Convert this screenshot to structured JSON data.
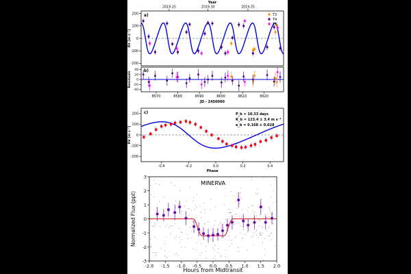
{
  "colors": {
    "page_background": "#000000",
    "figure_background": "#ffffff",
    "rv_model": "#0000dd",
    "zero_line": "#777777",
    "instrument_T3": "#ff8c00",
    "instrument_T4": "#4b0082",
    "instrument_T5": "#ff00ff",
    "phase_points": "#ff0000",
    "transit_model": "#dd3333",
    "binned_points": "#6a0dad",
    "raw_points": "#888888"
  },
  "chart_data": [
    {
      "type": "scatter",
      "panel_label": "a)",
      "top_axis_title": "Year",
      "top_ticks": [
        {
          "jd": 8576.0,
          "label": "2019.25"
        },
        {
          "jd": 8594.0,
          "label": "2019.30"
        },
        {
          "jd": 8612.5,
          "label": "2019.35"
        }
      ],
      "xlim": [
        8563,
        8629
      ],
      "ylabel": "RV [m s⁻¹]",
      "ylim": [
        -220,
        220
      ],
      "yticks": [
        -200,
        -100,
        0,
        100,
        200
      ],
      "zero_line": true,
      "legend_position": "top-right",
      "model": {
        "period": 10.33,
        "amplitude": 123.4,
        "eccentricity": 0.168,
        "t_peak": 8565.0
      },
      "series": [
        {
          "name": "T3",
          "color": "#ff8c00",
          "x": [
            8604.8,
            8614.9,
            8615.6,
            8625.2,
            8625.9
          ],
          "y": [
            -40,
            -95,
            -85,
            50,
            105
          ],
          "err": [
            20,
            22,
            20,
            25,
            22
          ]
        },
        {
          "name": "T4",
          "color": "#4b0082",
          "x": [
            8564.0,
            8566.5,
            8569.5,
            8575.0,
            8577.5,
            8580.0,
            8584.0,
            8585.5,
            8589.5,
            8592.5,
            8594.0,
            8596.0,
            8600.2,
            8602.0,
            8605.3,
            8608.3,
            8610.5,
            8614.8,
            8621.4,
            8624.6,
            8627.4
          ],
          "y": [
            140,
            15,
            -110,
            120,
            -45,
            -110,
            50,
            112,
            -100,
            38,
            125,
            120,
            -70,
            -120,
            5,
            110,
            100,
            -120,
            -70,
            90,
            -80
          ],
          "err": [
            18,
            22,
            20,
            20,
            18,
            22,
            20,
            18,
            22,
            20,
            18,
            20,
            22,
            20,
            18,
            22,
            20,
            20,
            22,
            20,
            22
          ]
        },
        {
          "name": "T5",
          "color": "#ff00ff",
          "x": [
            8567.0,
            8579.5,
            8591.0,
            8603.2,
            8611.0,
            8626.2
          ],
          "y": [
            -40,
            -80,
            -120,
            -110,
            140,
            85
          ],
          "err": [
            22,
            20,
            20,
            22,
            18,
            20
          ]
        }
      ]
    },
    {
      "type": "scatter",
      "panel_label": "b)",
      "xlabel": "JD - 2450000",
      "ylabel": "Residuals",
      "xlim": [
        8563,
        8629
      ],
      "xticks": [
        8570,
        8580,
        8590,
        8600,
        8610,
        8620
      ],
      "ylim": [
        -50,
        50
      ],
      "yticks": [
        -40,
        -20,
        0,
        20,
        40
      ],
      "series": [
        {
          "name": "T3",
          "color": "#ff8c00",
          "x": [
            8604.8,
            8614.9,
            8615.6,
            8625.2,
            8625.9
          ],
          "y": [
            12,
            -8,
            15,
            5,
            -10
          ],
          "err": [
            20,
            22,
            20,
            25,
            22
          ]
        },
        {
          "name": "T4",
          "color": "#4b0082",
          "x": [
            8564.0,
            8566.5,
            8569.5,
            8575.0,
            8577.5,
            8580.0,
            8584.0,
            8585.5,
            8589.5,
            8592.5,
            8594.0,
            8596.0,
            8600.2,
            8602.0,
            8605.3,
            8608.3,
            8610.5,
            8614.8,
            8621.4,
            8624.6,
            8627.4
          ],
          "y": [
            20,
            -10,
            15,
            -5,
            25,
            10,
            -15,
            5,
            20,
            -10,
            0,
            15,
            -12,
            8,
            -5,
            -25,
            12,
            0,
            18,
            -8,
            10
          ],
          "err": [
            18,
            22,
            20,
            20,
            18,
            22,
            20,
            18,
            22,
            20,
            18,
            20,
            22,
            20,
            18,
            22,
            20,
            20,
            22,
            20,
            22
          ]
        },
        {
          "name": "T5",
          "color": "#ff00ff",
          "x": [
            8567.0,
            8579.5,
            8591.0,
            8603.2,
            8611.0,
            8626.2
          ],
          "y": [
            -25,
            10,
            -20,
            15,
            -10,
            30
          ],
          "err": [
            22,
            20,
            20,
            22,
            18,
            20
          ]
        }
      ]
    },
    {
      "type": "scatter",
      "panel_label": "c)",
      "xlabel": "Phase",
      "ylabel": "RV [m s⁻¹]",
      "xlim": [
        -0.55,
        0.5
      ],
      "xticks": [
        -0.4,
        -0.2,
        0.0,
        0.2,
        0.4
      ],
      "ylim": [
        -250,
        250
      ],
      "yticks": [
        -200,
        -100,
        0,
        100,
        200
      ],
      "zero_line": true,
      "annotations": [
        "P_b = 10.33 days",
        "K_b = 123.4 ± 3.4 m s⁻¹",
        "e_b = 0.168 ± 0.028"
      ],
      "phase_points": {
        "x": [
          -0.53,
          -0.48,
          -0.44,
          -0.4,
          -0.37,
          -0.33,
          -0.3,
          -0.26,
          -0.22,
          -0.19,
          -0.15,
          -0.11,
          -0.07,
          -0.03,
          0.02,
          0.05,
          0.08,
          0.12,
          0.15,
          0.19,
          0.22,
          0.26,
          0.29,
          0.33,
          0.37,
          0.41,
          0.45
        ],
        "y": [
          -20,
          10,
          50,
          80,
          92,
          100,
          112,
          120,
          128,
          118,
          100,
          70,
          35,
          0,
          -35,
          -60,
          -85,
          -100,
          -112,
          -118,
          -114,
          -100,
          -88,
          -62,
          -50,
          -25,
          -8
        ],
        "err": [
          22,
          20,
          22,
          20,
          18,
          22,
          20,
          18,
          20,
          22,
          20,
          18,
          22,
          20,
          18,
          22,
          20,
          18,
          22,
          20,
          18,
          22,
          20,
          18,
          22,
          20,
          22
        ]
      }
    },
    {
      "type": "scatter",
      "title": "MINERVA",
      "xlabel": "Hours from Midtransit",
      "ylabel": "Normalized Flux (ppt)",
      "xlim": [
        -2.0,
        2.0
      ],
      "xticks": [
        -2.0,
        -1.5,
        -1.0,
        -0.5,
        0.0,
        0.5,
        1.0,
        1.5,
        2.0
      ],
      "ylim": [
        -3,
        3
      ],
      "yticks": [
        -3,
        -2,
        -1,
        0,
        1,
        2,
        3
      ],
      "transit_model": {
        "depth_ppt": 1.2,
        "ingress_start_h": -0.62,
        "flat_start_h": -0.35,
        "flat_end_h": 0.35,
        "egress_end_h": 0.62
      },
      "binned_points": {
        "x": [
          -1.75,
          -1.55,
          -1.4,
          -1.2,
          -1.05,
          -0.85,
          -0.6,
          -0.45,
          -0.3,
          -0.15,
          0.0,
          0.15,
          0.3,
          0.45,
          0.6,
          0.8,
          0.95,
          1.1,
          1.3,
          1.5,
          1.65,
          1.85
        ],
        "y": [
          0.35,
          0.25,
          0.65,
          0.45,
          0.85,
          0.05,
          -0.55,
          -0.75,
          -1.05,
          -1.2,
          -1.15,
          -1.1,
          -0.85,
          -0.45,
          -0.25,
          1.35,
          -0.15,
          -0.45,
          -0.25,
          0.85,
          -0.25,
          0.05
        ],
        "err": [
          0.5,
          0.45,
          0.5,
          0.55,
          0.45,
          0.5,
          0.45,
          0.5,
          0.45,
          0.5,
          0.5,
          0.45,
          0.5,
          0.45,
          0.5,
          0.55,
          0.5,
          0.45,
          0.5,
          0.55,
          0.5,
          0.45
        ]
      },
      "raw_scatter": {
        "count": 320,
        "x_range": [
          -2.0,
          2.0
        ],
        "spread_ppt": 1.6
      }
    }
  ]
}
